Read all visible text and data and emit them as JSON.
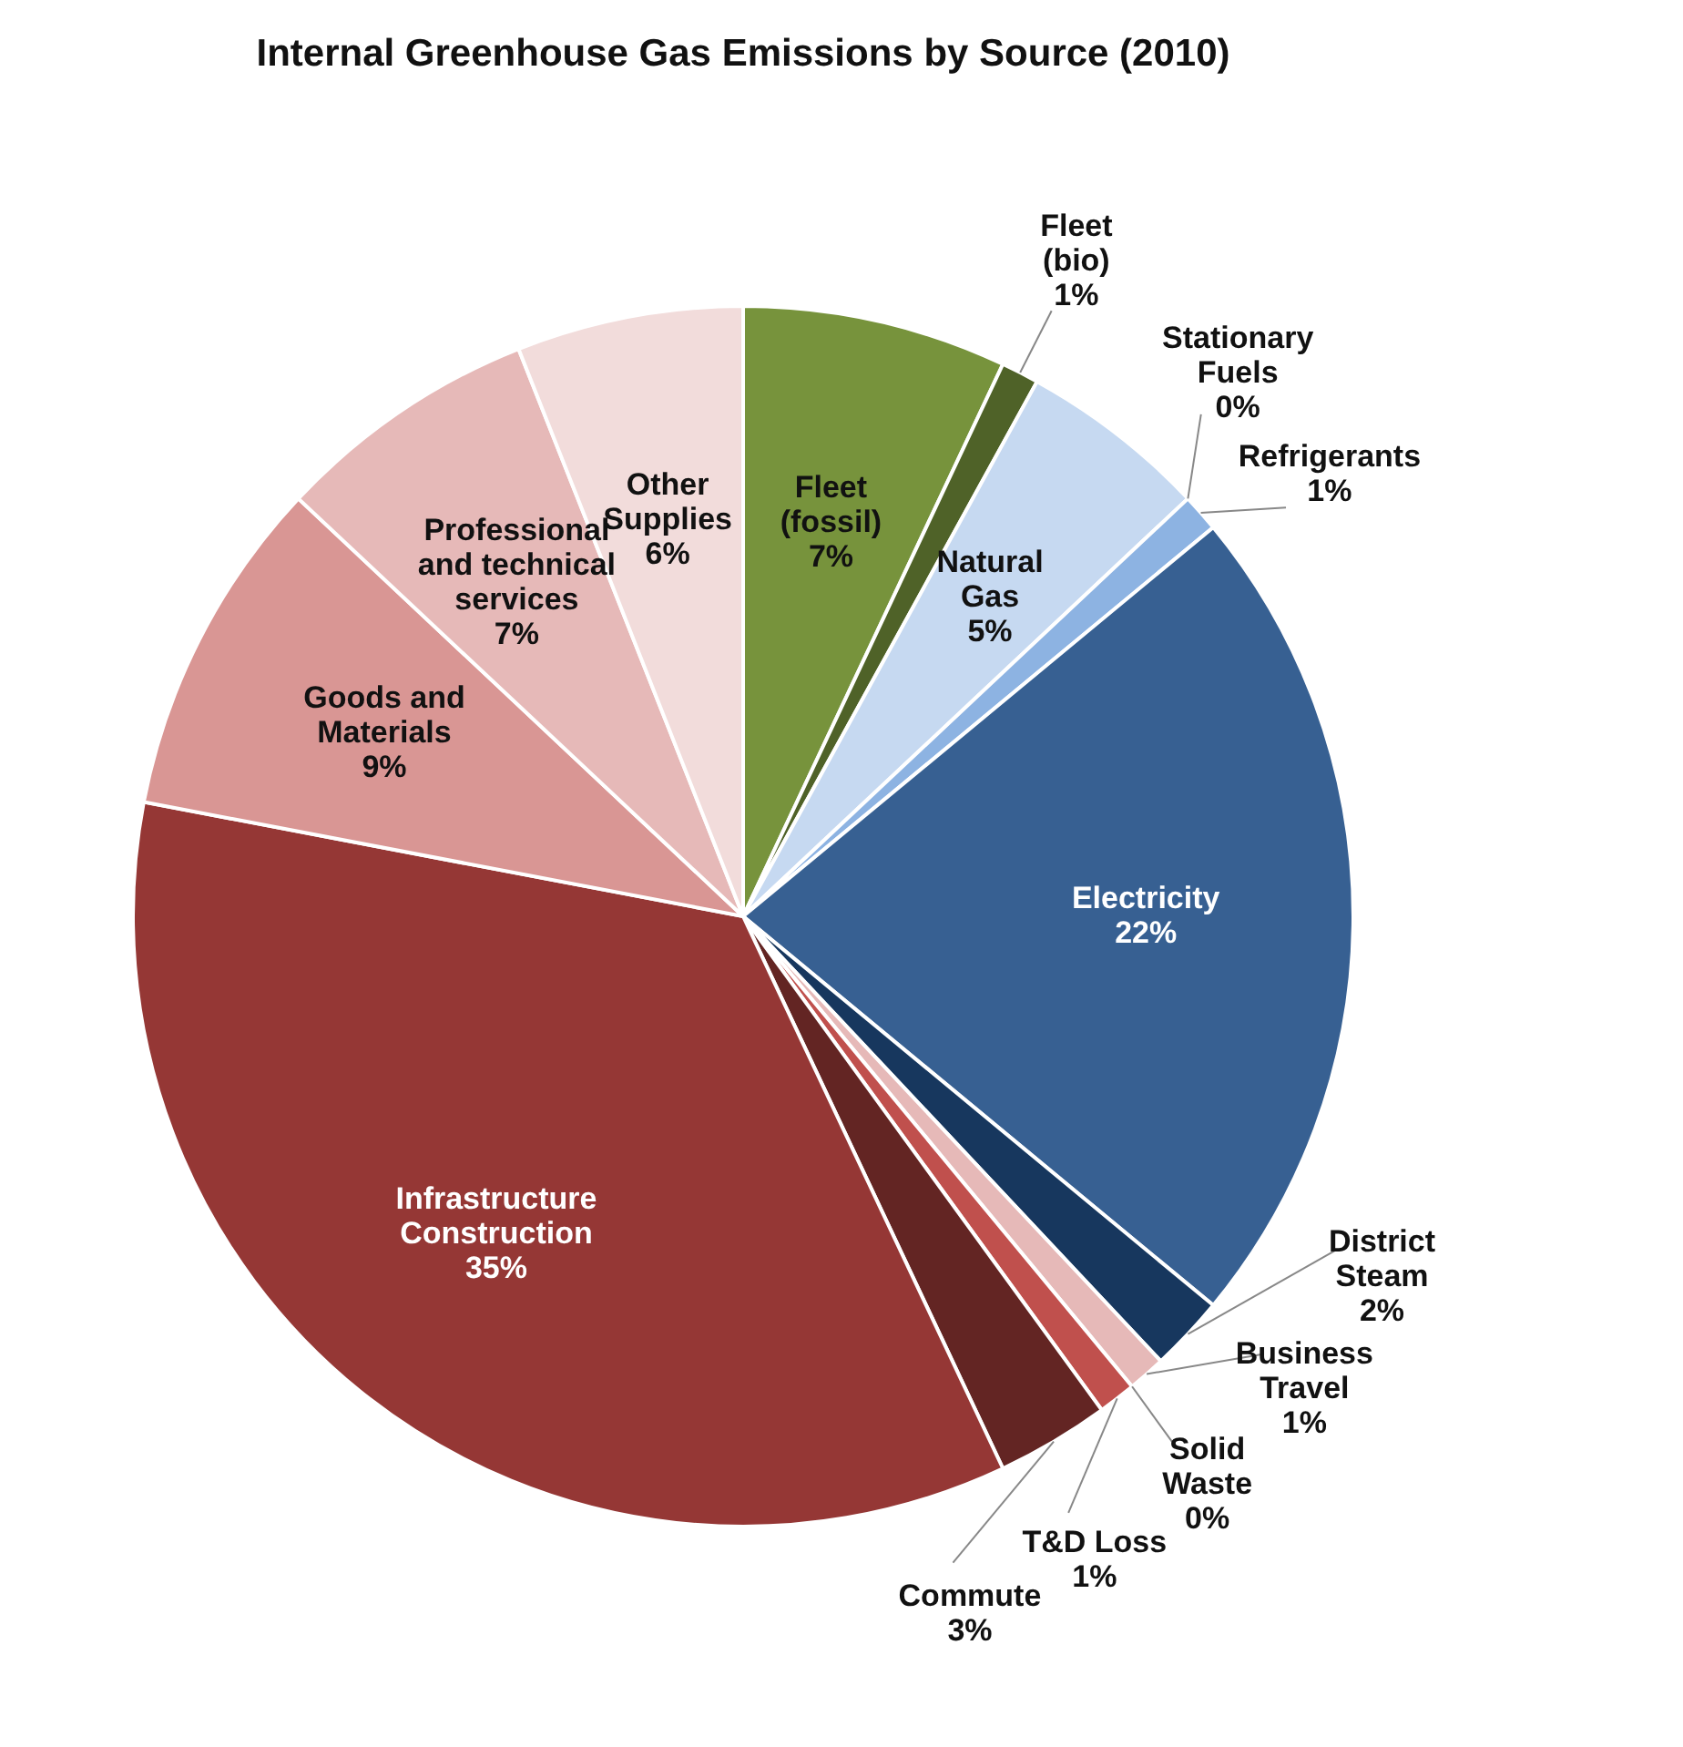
{
  "chart_data": {
    "type": "pie",
    "title": "Internal Greenhouse Gas Emissions by Source (2010)",
    "categories": [
      "Fleet (fossil)",
      "Fleet (bio)",
      "Natural Gas",
      "Stationary Fuels",
      "Refrigerants",
      "Electricity",
      "District Steam",
      "Business Travel",
      "Solid Waste",
      "T&D Loss",
      "Commute",
      "Infrastructure Construction",
      "Goods and Materials",
      "Professional and technical services",
      "Other Supplies"
    ],
    "values": [
      7,
      1,
      5,
      0,
      1,
      22,
      2,
      1,
      0,
      1,
      3,
      35,
      9,
      7,
      6
    ],
    "value_labels": [
      "7%",
      "1%",
      "5%",
      "0%",
      "1%",
      "22%",
      "2%",
      "1%",
      "0%",
      "1%",
      "3%",
      "35%",
      "9%",
      "7%",
      "6%"
    ],
    "colors": [
      "#77933c",
      "#4f6228",
      "#c6d9f1",
      null,
      "#8db3e2",
      "#376092",
      "#17375e",
      "#e6b9b8",
      null,
      "#c0504d",
      "#632523",
      "#953735",
      "#d99694",
      "#e6b9b8",
      "#f2dcdb"
    ]
  }
}
